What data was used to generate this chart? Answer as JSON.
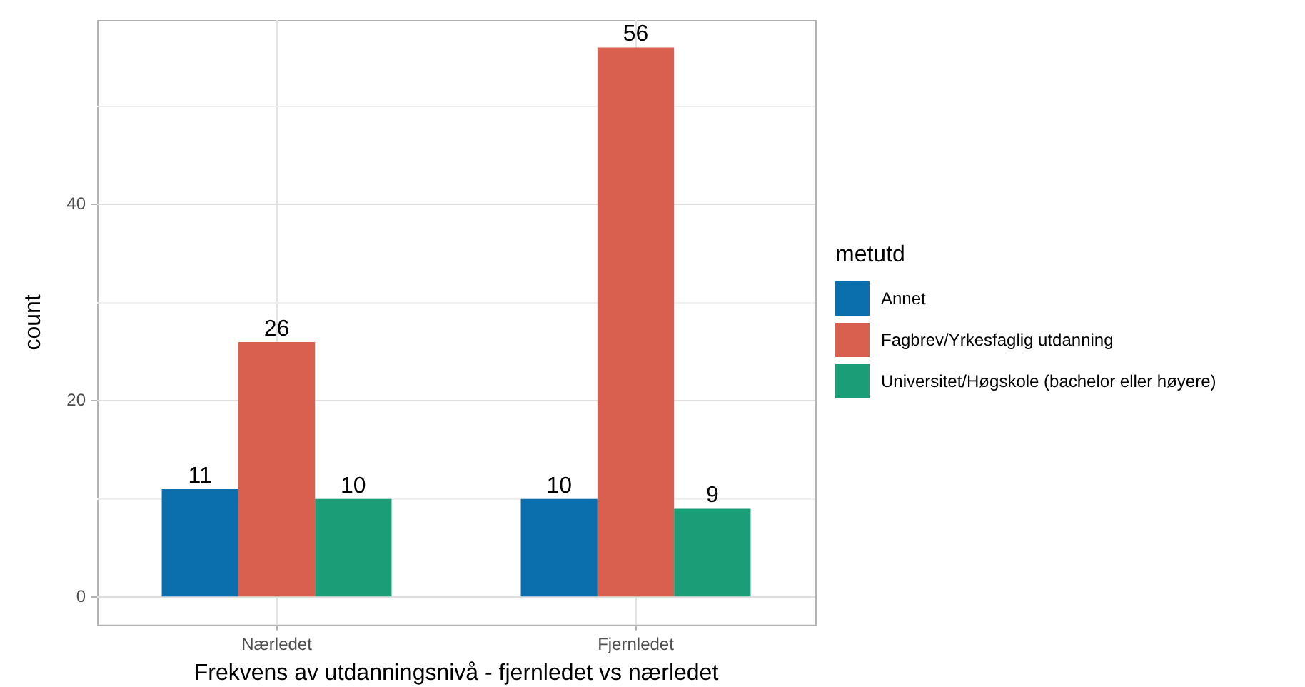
{
  "chart_data": {
    "type": "bar",
    "xlabel": "Frekvens av utdanningsnivå - fjernledet vs nærledet",
    "ylabel": "count",
    "legend_title": "metutd",
    "legend": "right",
    "categories": [
      "Nærledet",
      "Fjernledet"
    ],
    "series": [
      {
        "name": "Annet",
        "color": "#0b6fae",
        "values": [
          11,
          10
        ]
      },
      {
        "name": "Fagbrev/Yrkesfaglig utdanning",
        "color": "#d95f4e",
        "values": [
          26,
          56
        ]
      },
      {
        "name": "Universitet/Høgskole (bachelor eller høyere)",
        "color": "#1b9e77",
        "values": [
          10,
          9
        ]
      }
    ],
    "ylim": [
      -2.8,
      58.8
    ],
    "yticks": [
      0,
      {
        "value": 10,
        "label": null
      },
      20,
      {
        "value": 30,
        "label": null
      },
      40,
      {
        "value": 50,
        "label": null
      }
    ],
    "grid": true,
    "data_labels": true
  }
}
